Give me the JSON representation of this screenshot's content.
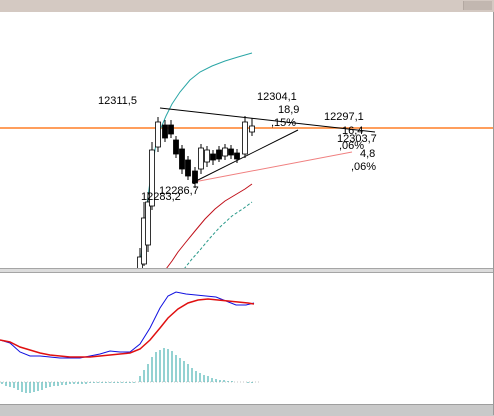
{
  "colors": {
    "background": "#ffffff",
    "candle_up": "#ffffff",
    "candle_down": "#000000",
    "candle_outline": "#000000",
    "horizontal_line": "#ff7f27",
    "ma_teal": "#2aa6a6",
    "ma_red": "#c0101a",
    "ma_teal_dashed": "#2a9a8a",
    "macd_line": "#1010e0",
    "signal_line": "#e01010",
    "histogram": "#2aa6a6",
    "trend_line_red": "#f08080"
  },
  "price_labels": {
    "high_left": "12311,5",
    "high_right_value": "12304,1",
    "high_right_change": "18,9",
    "high_right_pct": ",15%",
    "right_level": "12297,1",
    "right_change": "16,4",
    "right_pct": ",06%",
    "right_level2": "12303,7",
    "right_change2": "4,8",
    "right_pct2": ",06%",
    "low_a": "12286,7",
    "low_b": "12283,2"
  },
  "chart_data": {
    "type": "candlestick",
    "series": [
      {
        "name": "",
        "values": [
          12270,
          12276,
          12282,
          12291,
          12299,
          12306,
          12309,
          12303,
          12298,
          12292,
          12287,
          12289,
          12294,
          12297,
          12295,
          12296,
          12298,
          12302,
          12304,
          12304
        ]
      },
      {
        "name": "",
        "values": [
          12245,
          12250,
          12258,
          12266,
          12275,
          12285,
          12293,
          12298,
          12300
        ]
      },
      {
        "name": "",
        "values": [
          12240,
          12246,
          12252,
          12260,
          12267,
          12274
        ]
      }
    ],
    "annotations": [
      "12311,5",
      "12304,1",
      "18,9",
      ",15%",
      "12297,1",
      "16,4",
      ",06%",
      "12303,7",
      "4,8",
      ",06%",
      "12286,7",
      "12283,2"
    ]
  }
}
